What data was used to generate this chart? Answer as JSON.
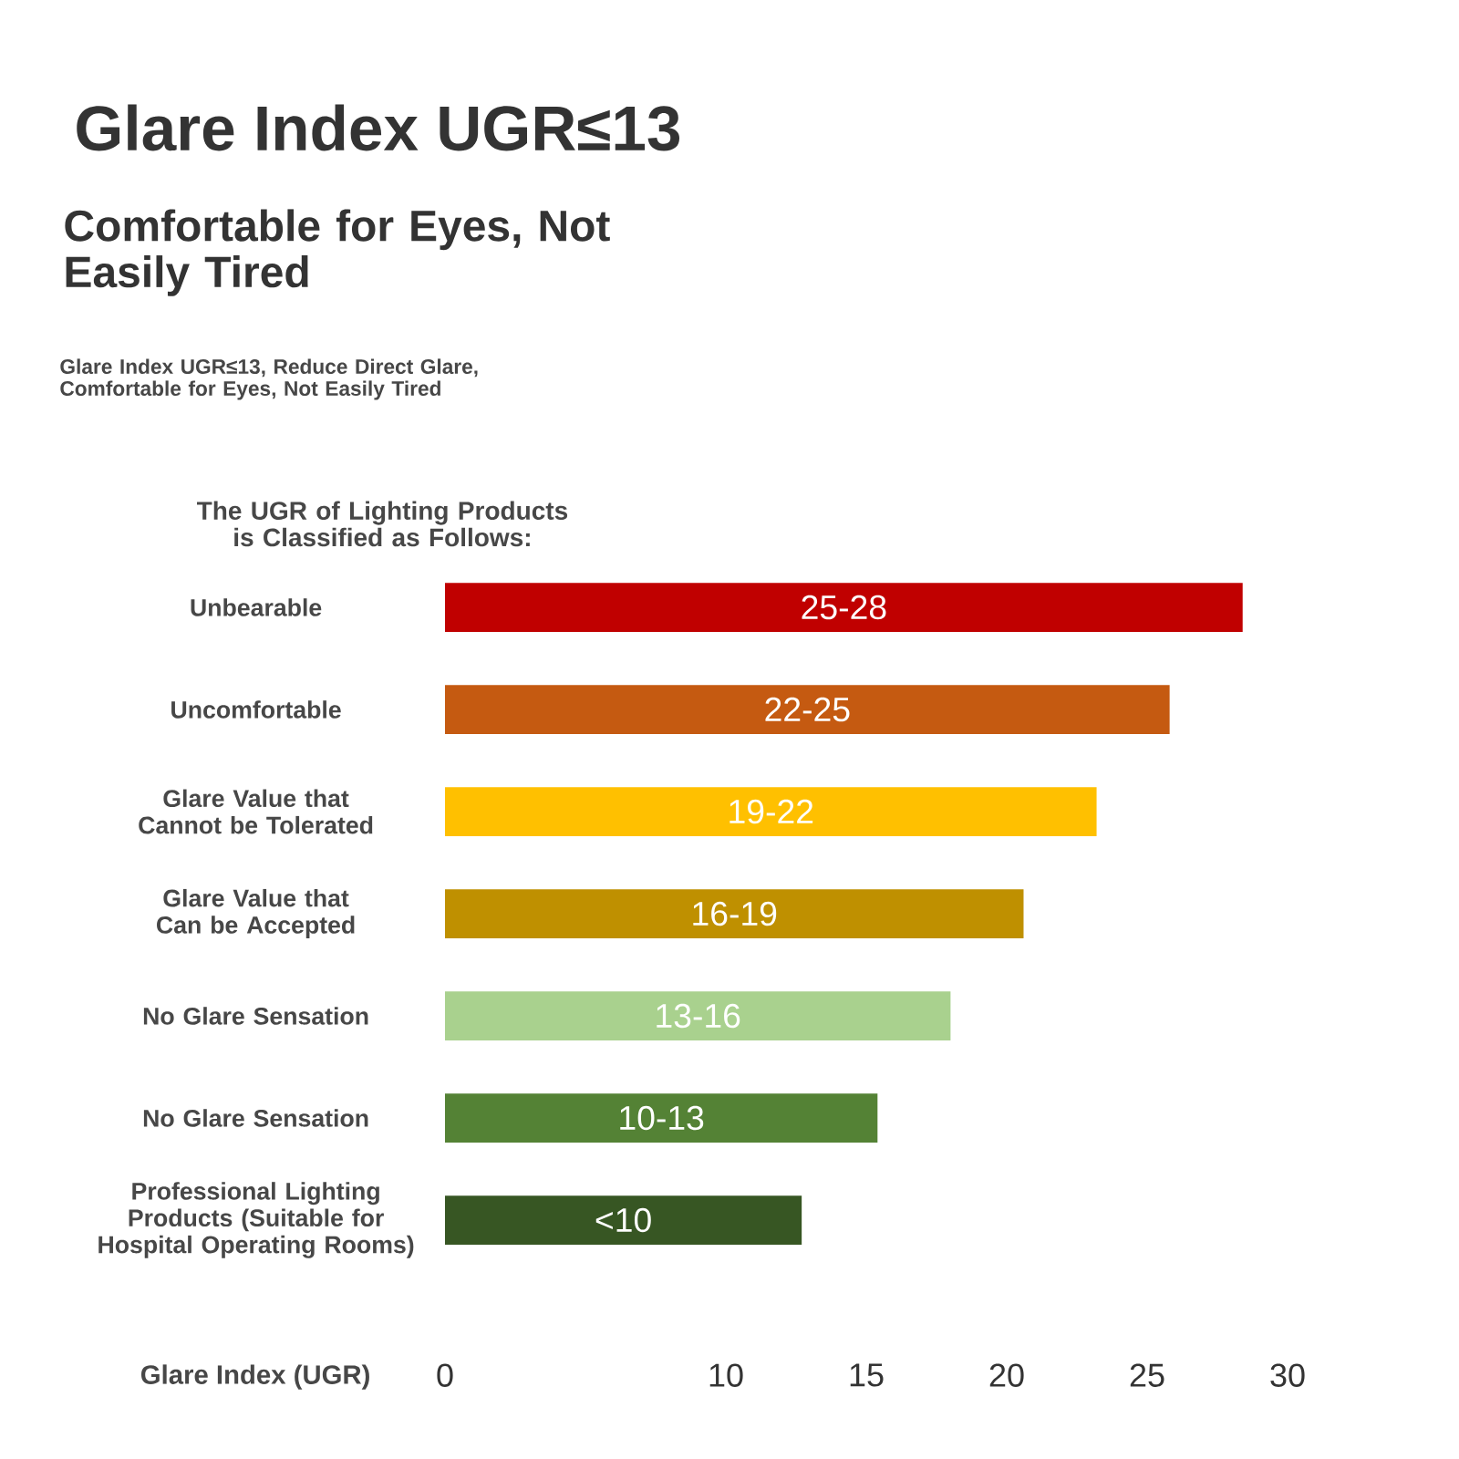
{
  "chart_data": {
    "type": "bar",
    "orientation": "horizontal",
    "title": "Glare Index UGR≤13",
    "subtitle": "Comfortable for Eyes, Not Easily Tired",
    "annotations": [
      "Glare Index UGR≤13, Reduce Direct Glare, Comfortable for Eyes, Not Easily Tired",
      "The UGR of Lighting Products is Classified as Follows:"
    ],
    "xlabel": "Glare Index (UGR)",
    "categories": [
      "Unbearable",
      "Uncomfortable",
      "Glare Value that Cannot be Tolerated",
      "Glare Value that Can be Accepted",
      "No Glare Sensation",
      "No Glare Sensation",
      "Professional Lighting Products (Suitable for Hospital Operating Rooms)"
    ],
    "values": [
      28.4,
      25.8,
      23.2,
      20.6,
      18.0,
      15.4,
      12.7
    ],
    "colors": [
      "#c00000",
      "#c55a11",
      "#ffc000",
      "#bf9000",
      "#a9d18e",
      "#548235",
      "#375623"
    ],
    "value_labels": [
      "25-28",
      "22-25",
      "19-22",
      "16-19",
      "13-16",
      "10-13",
      "<10"
    ],
    "xlim": [
      0,
      30
    ],
    "xticks": [
      0,
      10,
      15,
      20,
      25,
      30
    ]
  }
}
